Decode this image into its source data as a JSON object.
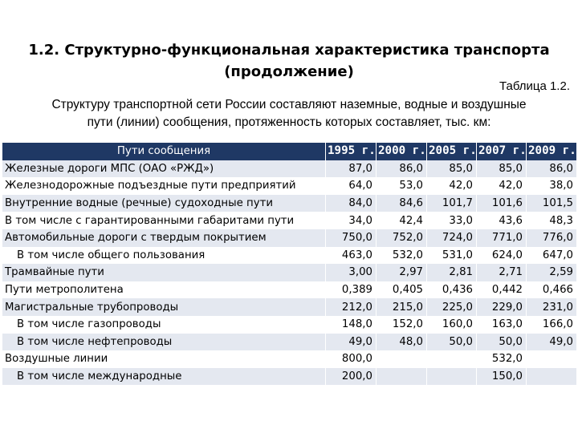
{
  "title": {
    "line1": "1.2. Структурно-функциональная характеристика транспорта",
    "line2": "(продолжение)"
  },
  "table_label": "Таблица 1.2.",
  "intro": {
    "line1": "Структуру транспортной сети России составляют наземные, водные и воздушные",
    "line2": "пути (линии) сообщения, протяженность которых составляет, тыс. км:"
  },
  "table": {
    "header": {
      "name": "Пути сообщения",
      "years": [
        "1995 г.",
        "2000 г.",
        "2005 г.",
        "2007 г.",
        "2009 г."
      ]
    },
    "rows": [
      {
        "name": "Железные дороги МПС (ОАО «РЖД»)",
        "indent": false,
        "values": [
          "87,0",
          "86,0",
          "85,0",
          "85,0",
          "86,0"
        ]
      },
      {
        "name": "Железнодорожные подъездные пути предприятий",
        "indent": false,
        "values": [
          "64,0",
          "53,0",
          "42,0",
          "42,0",
          "38,0"
        ]
      },
      {
        "name": "Внутренние водные (речные) судоходные пути",
        "indent": false,
        "values": [
          "84,0",
          "84,6",
          "101,7",
          "101,6",
          "101,5"
        ]
      },
      {
        "name": "В том числе с гарантированными габаритами пути",
        "indent": false,
        "values": [
          "34,0",
          "42,4",
          "33,0",
          "43,6",
          "48,3"
        ]
      },
      {
        "name": "Автомобильные дороги с твердым покрытием",
        "indent": false,
        "values": [
          "750,0",
          "752,0",
          "724,0",
          "771,0",
          "776,0"
        ]
      },
      {
        "name": "В том числе общего пользования",
        "indent": true,
        "values": [
          "463,0",
          "532,0",
          "531,0",
          "624,0",
          "647,0"
        ]
      },
      {
        "name": "Трамвайные пути",
        "indent": false,
        "values": [
          "3,00",
          "2,97",
          "2,81",
          "2,71",
          "2,59"
        ]
      },
      {
        "name": "Пути метрополитена",
        "indent": false,
        "values": [
          "0,389",
          "0,405",
          "0,436",
          "0,442",
          "0,466"
        ]
      },
      {
        "name": "Магистральные трубопроводы",
        "indent": false,
        "values": [
          "212,0",
          "215,0",
          "225,0",
          "229,0",
          "231,0"
        ]
      },
      {
        "name": "В том числе газопроводы",
        "indent": true,
        "values": [
          "148,0",
          "152,0",
          "160,0",
          "163,0",
          "166,0"
        ]
      },
      {
        "name": "В том числе нефтепроводы",
        "indent": true,
        "values": [
          "49,0",
          "48,0",
          "50,0",
          "50,0",
          "49,0"
        ]
      },
      {
        "name": "Воздушные линии",
        "indent": false,
        "values": [
          "800,0",
          "",
          "",
          "532,0",
          ""
        ]
      },
      {
        "name": "В том числе международные",
        "indent": true,
        "values": [
          "200,0",
          "",
          "",
          "150,0",
          ""
        ]
      }
    ]
  }
}
